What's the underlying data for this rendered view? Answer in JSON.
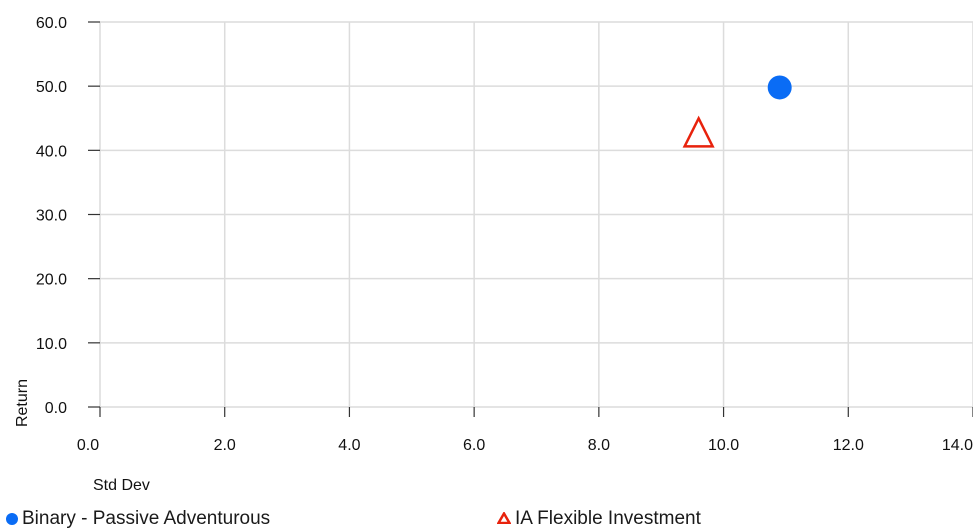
{
  "chart_data": {
    "type": "scatter",
    "xlabel": "Std Dev",
    "ylabel": "Return",
    "xlim": [
      0,
      14
    ],
    "ylim": [
      0,
      60
    ],
    "x_ticks": [
      "0.0",
      "2.0",
      "4.0",
      "6.0",
      "8.0",
      "10.0",
      "12.0",
      "14.0"
    ],
    "y_ticks": [
      "0.0",
      "10.0",
      "20.0",
      "30.0",
      "40.0",
      "50.0",
      "60.0"
    ],
    "grid": true,
    "legend_position": "bottom",
    "series": [
      {
        "name": "Binary - Passive Adventurous",
        "marker": "circle",
        "color": "#0a6cf5",
        "points": [
          {
            "x": 10.9,
            "y": 49.8
          }
        ]
      },
      {
        "name": "IA Flexible Investment",
        "marker": "triangle-outline",
        "color": "#e8220c",
        "points": [
          {
            "x": 9.6,
            "y": 42.8
          }
        ]
      }
    ]
  }
}
